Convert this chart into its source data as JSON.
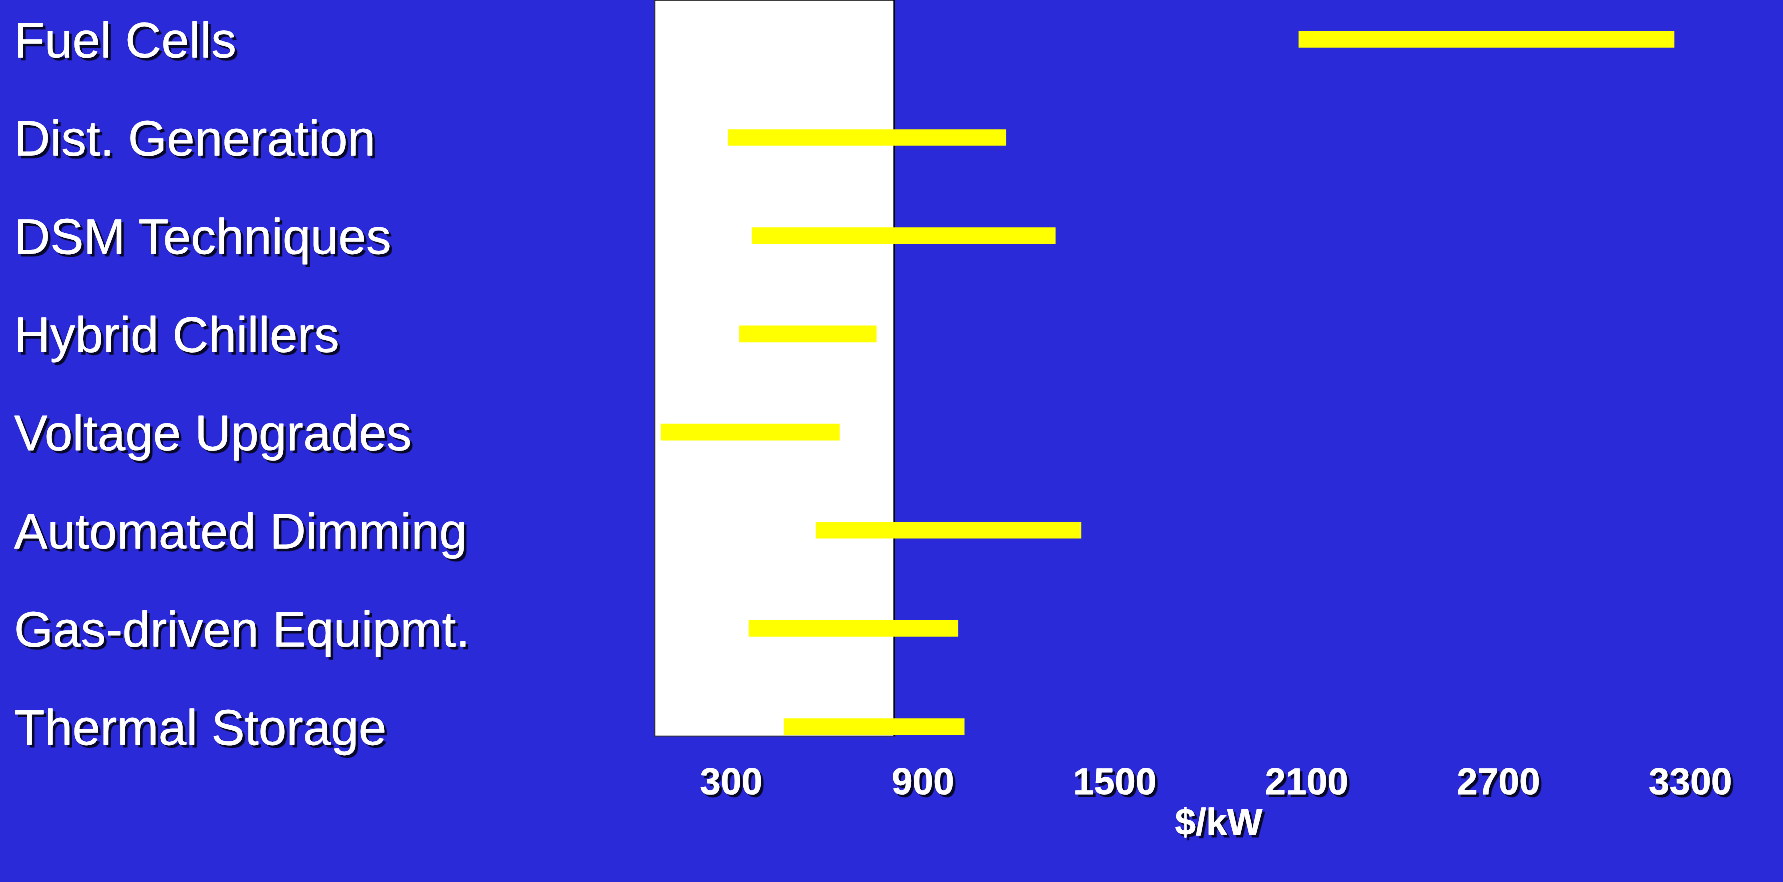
{
  "chart_data": {
    "type": "bar",
    "orientation": "horizontal",
    "xlabel": "$/kW",
    "categories": [
      "Fuel Cells",
      "Dist. Generation",
      "DSM Techniques",
      "Hybrid Chillers",
      "Voltage Upgrades",
      "Automated Dimming",
      "Gas-driven Equipmt.",
      "Thermal Storage"
    ],
    "base": [
      2075,
      290,
      365,
      325,
      80,
      565,
      355,
      465
    ],
    "values": [
      1175,
      870,
      950,
      430,
      560,
      830,
      655,
      565
    ],
    "color": "#ffff00",
    "xlim": [
      60,
      3590
    ],
    "xticks": [
      300,
      900,
      1500,
      2100,
      2700,
      3300
    ],
    "bands": [
      {
        "axis": "x",
        "from": 60,
        "to": 810,
        "color": "#ffffff"
      }
    ],
    "grid": false,
    "legend": false
  }
}
